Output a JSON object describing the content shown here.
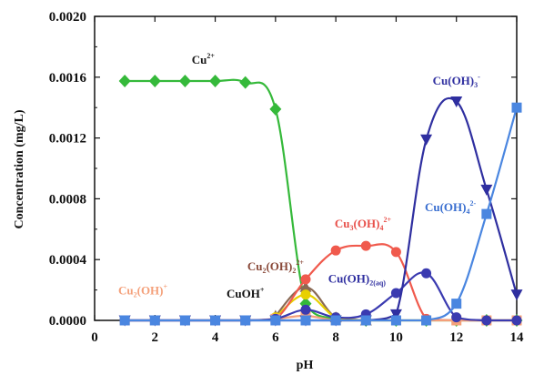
{
  "chart_data": {
    "type": "line",
    "title": "",
    "xlabel": "pH",
    "ylabel": "Concentration (mg/L)",
    "xlim": [
      0,
      14
    ],
    "ylim": [
      0,
      0.002
    ],
    "x_ticks": [
      "0",
      "2",
      "4",
      "6",
      "8",
      "10",
      "12",
      "14"
    ],
    "y_ticks": [
      "0.0000",
      "0.0004",
      "0.0008",
      "0.0012",
      "0.0016",
      "0.0020"
    ],
    "grid": false,
    "legend": "none",
    "series": [
      {
        "name": "Cu2+",
        "label": {
          "base": "Cu",
          "sup": "2+",
          "parts": []
        },
        "color": "#35b93a",
        "marker": "diamond",
        "points": [
          [
            1,
            0.001575
          ],
          [
            2,
            0.001575
          ],
          [
            3,
            0.001575
          ],
          [
            4,
            0.001575
          ],
          [
            5,
            0.001565
          ],
          [
            6,
            0.00139
          ],
          [
            7,
            0.00011
          ],
          [
            8,
            1e-05
          ],
          [
            9,
            0.0
          ],
          [
            10,
            0.0
          ],
          [
            11,
            0.0
          ],
          [
            12,
            0.0
          ],
          [
            13,
            0.0
          ],
          [
            14,
            0.0
          ]
        ]
      },
      {
        "name": "Cu2(OH)22+",
        "label": {
          "parts": [
            [
              "Cu",
              ""
            ],
            [
              "2",
              "sub"
            ],
            [
              "(OH)",
              ""
            ],
            [
              "2",
              "sub"
            ],
            [
              "2+",
              "sup"
            ]
          ]
        },
        "color": "#8a6a55",
        "marker": "triangle-up",
        "points": [
          [
            6,
            3e-05
          ],
          [
            7,
            0.00022
          ],
          [
            8,
            2e-05
          ],
          [
            9,
            0.0
          ]
        ]
      },
      {
        "name": "CuOH+",
        "label": {
          "parts": [
            [
              "CuOH",
              ""
            ],
            [
              "+",
              "sup"
            ]
          ]
        },
        "color": "#e8d000",
        "marker": "circle",
        "points": [
          [
            6,
            2e-05
          ],
          [
            7,
            0.00017
          ],
          [
            8,
            2e-05
          ],
          [
            9,
            0.0
          ]
        ]
      },
      {
        "name": "Cu3(OH)42+",
        "label": {
          "parts": [
            [
              "Cu",
              ""
            ],
            [
              "3",
              "sub"
            ],
            [
              "(OH)",
              ""
            ],
            [
              "4",
              "sub"
            ],
            [
              "2+",
              "sup"
            ]
          ]
        },
        "color": "#f05a4d",
        "marker": "circle",
        "points": [
          [
            1,
            0.0
          ],
          [
            2,
            0.0
          ],
          [
            3,
            0.0
          ],
          [
            4,
            0.0
          ],
          [
            5,
            0.0
          ],
          [
            6,
            1e-05
          ],
          [
            7,
            0.00027
          ],
          [
            8,
            0.00046
          ],
          [
            9,
            0.00049
          ],
          [
            10,
            0.00045
          ],
          [
            11,
            1e-05
          ],
          [
            12,
            0.0
          ],
          [
            13,
            0.0
          ],
          [
            14,
            0.0
          ]
        ]
      },
      {
        "name": "Cu2(OH)+",
        "label": {
          "parts": [
            [
              "Cu",
              ""
            ],
            [
              "2",
              "sub"
            ],
            [
              "(OH)",
              ""
            ],
            [
              "+",
              "sup"
            ]
          ]
        },
        "color": "#f4a07a",
        "marker": "square",
        "points": [
          [
            1,
            0.0
          ],
          [
            2,
            0.0
          ],
          [
            3,
            0.0
          ],
          [
            4,
            0.0
          ],
          [
            5,
            0.0
          ],
          [
            6,
            1e-05
          ],
          [
            7,
            3e-05
          ],
          [
            8,
            0.0
          ],
          [
            9,
            0.0
          ],
          [
            10,
            0.0
          ],
          [
            11,
            0.0
          ],
          [
            12,
            0.0
          ],
          [
            13,
            0.0
          ],
          [
            14,
            0.0
          ]
        ]
      },
      {
        "name": "Cu(OH)2(aq)",
        "label": {
          "parts": [
            [
              "Cu(OH)",
              ""
            ],
            [
              "2(aq)",
              "sub"
            ]
          ]
        },
        "color": "#3a3ab0",
        "marker": "circle",
        "points": [
          [
            1,
            0.0
          ],
          [
            2,
            0.0
          ],
          [
            3,
            0.0
          ],
          [
            4,
            0.0
          ],
          [
            5,
            0.0
          ],
          [
            6,
            1e-05
          ],
          [
            7,
            7e-05
          ],
          [
            8,
            2e-05
          ],
          [
            9,
            4e-05
          ],
          [
            10,
            0.00018
          ],
          [
            11,
            0.00031
          ],
          [
            12,
            2e-05
          ],
          [
            13,
            0.0
          ],
          [
            14,
            0.0
          ]
        ]
      },
      {
        "name": "Cu(OH)3-",
        "label": {
          "parts": [
            [
              "Cu(OH)",
              ""
            ],
            [
              "3",
              "sub"
            ],
            [
              "-",
              "sup"
            ]
          ]
        },
        "color": "#2f2fa0",
        "marker": "triangle-down",
        "points": [
          [
            1,
            0.0
          ],
          [
            2,
            0.0
          ],
          [
            3,
            0.0
          ],
          [
            4,
            0.0
          ],
          [
            5,
            0.0
          ],
          [
            6,
            0.0
          ],
          [
            7,
            0.0
          ],
          [
            8,
            0.0
          ],
          [
            9,
            0.0
          ],
          [
            10,
            4e-05
          ],
          [
            11,
            0.00119
          ],
          [
            12,
            0.00144
          ],
          [
            13,
            0.00086
          ],
          [
            14,
            0.00017
          ]
        ]
      },
      {
        "name": "Cu(OH)42-",
        "label": {
          "parts": [
            [
              "Cu(OH)",
              ""
            ],
            [
              "4",
              "sub"
            ],
            [
              "2-",
              "sup"
            ]
          ]
        },
        "color": "#4a86e0",
        "marker": "square",
        "points": [
          [
            1,
            0.0
          ],
          [
            2,
            0.0
          ],
          [
            3,
            0.0
          ],
          [
            4,
            0.0
          ],
          [
            5,
            0.0
          ],
          [
            6,
            0.0
          ],
          [
            7,
            0.0
          ],
          [
            8,
            0.0
          ],
          [
            9,
            0.0
          ],
          [
            10,
            0.0
          ],
          [
            11,
            0.0
          ],
          [
            12,
            0.00011
          ],
          [
            13,
            0.0007
          ],
          [
            14,
            0.0014
          ]
        ]
      }
    ]
  }
}
